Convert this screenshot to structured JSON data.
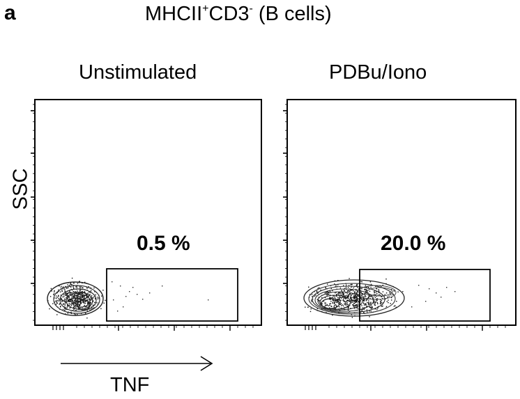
{
  "figure": {
    "panel_letter": "a",
    "title_main": "MHCII",
    "title_sup1": "+",
    "title_mid": "CD3",
    "title_sup2": "-",
    "title_tail": " (B cells)",
    "y_axis_label": "SSC",
    "x_axis_label": "TNF"
  },
  "panels": [
    {
      "title": "Unstimulated",
      "gate_percent": "0.5 %"
    },
    {
      "title": "PDBu/Iono",
      "gate_percent": "20.0 %"
    }
  ],
  "chart_data": [
    {
      "type": "scatter",
      "title": "Unstimulated",
      "xlabel": "TNF",
      "ylabel": "SSC",
      "gate_label": "0.5 %",
      "gate_value_percent": 0.5
    },
    {
      "type": "scatter",
      "title": "PDBu/Iono",
      "xlabel": "TNF",
      "ylabel": "SSC",
      "gate_label": "20.0 %",
      "gate_value_percent": 20.0
    }
  ]
}
